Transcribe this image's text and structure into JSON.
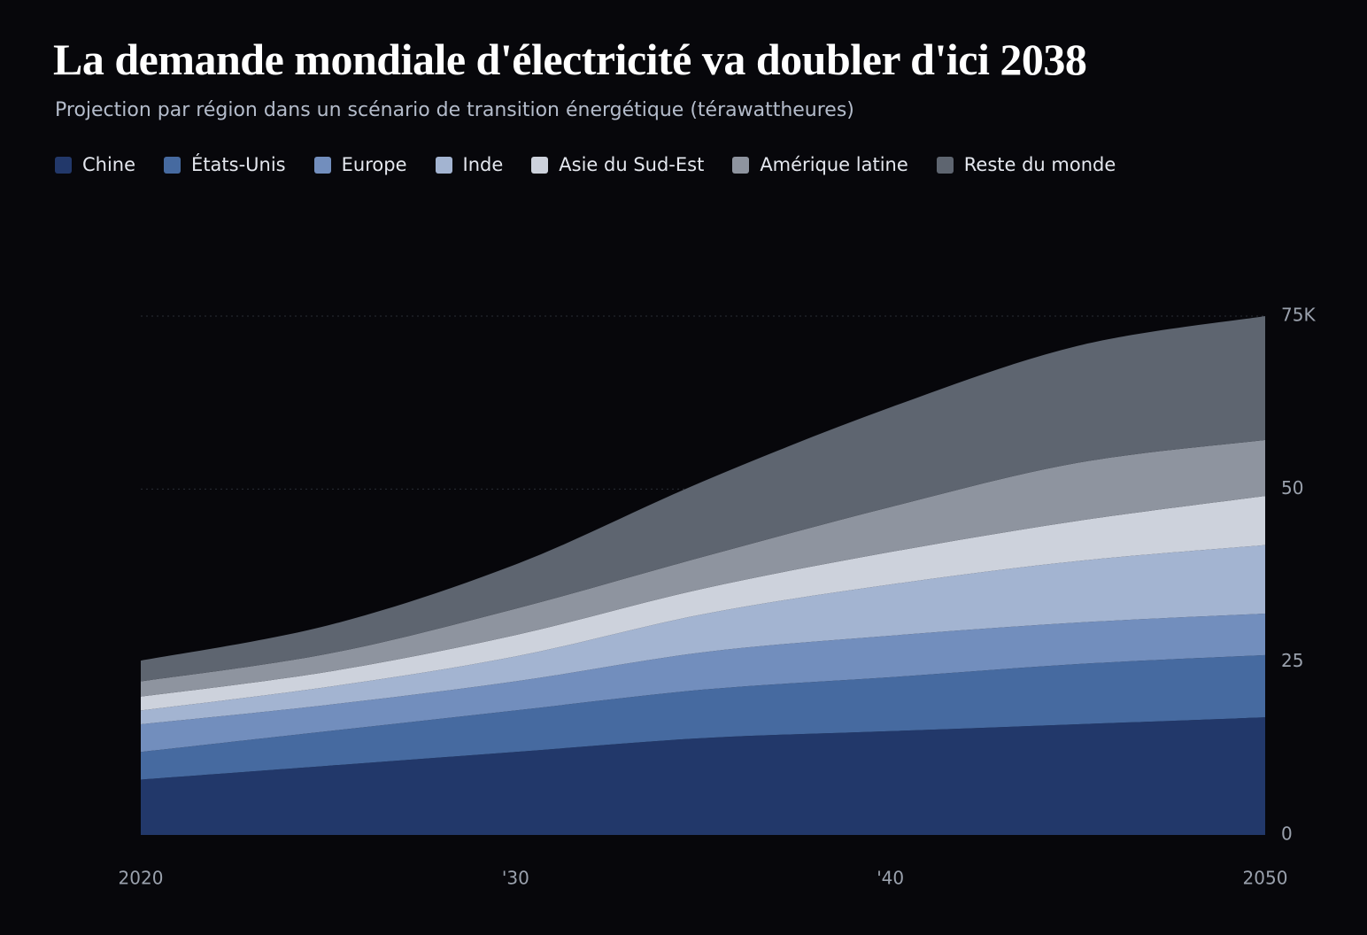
{
  "chart_data": {
    "type": "stacked_area",
    "title": "La demande mondiale d'électricité va doubler d'ici 2038",
    "subtitle": "Projection par région dans un scénario de transition énergétique (térawattheures)",
    "x": [
      2020,
      2025,
      2030,
      2035,
      2040,
      2045,
      2050
    ],
    "series": [
      {
        "name": "Chine",
        "color": "#22386a",
        "values": [
          8,
          10,
          12,
          14,
          15,
          16,
          17
        ]
      },
      {
        "name": "États-Unis",
        "color": "#466aa0",
        "values": [
          4,
          5,
          6,
          7,
          7.8,
          8.7,
          9
        ]
      },
      {
        "name": "Europe",
        "color": "#728ebd",
        "values": [
          4,
          3.8,
          4.2,
          5.4,
          6,
          6,
          6
        ]
      },
      {
        "name": "Inde",
        "color": "#a3b4d1",
        "values": [
          2,
          2.6,
          3.6,
          5.5,
          7.4,
          8.9,
          9.9
        ]
      },
      {
        "name": "Asie du Sud-Est",
        "color": "#cdd2dc",
        "values": [
          2,
          2.2,
          3.1,
          3.7,
          4.7,
          5.8,
          7.1
        ]
      },
      {
        "name": "Amérique latine",
        "color": "#8e949f",
        "values": [
          2.2,
          2.6,
          3.8,
          4.6,
          6.5,
          8.4,
          8.1
        ]
      },
      {
        "name": "Reste du monde",
        "color": "#5e6570",
        "values": [
          3,
          4.1,
          6.4,
          10.9,
          14.4,
          16.9,
          17.9
        ]
      }
    ],
    "xlim": [
      2020,
      2050
    ],
    "xticks": [
      2020,
      {
        "value": 2030,
        "label": "'30"
      },
      {
        "value": 2040,
        "label": "'40"
      },
      2050
    ],
    "ylim": [
      0,
      75
    ],
    "yticks": [
      0,
      25,
      50,
      {
        "value": 75,
        "label": "75K"
      }
    ],
    "grid": true
  }
}
